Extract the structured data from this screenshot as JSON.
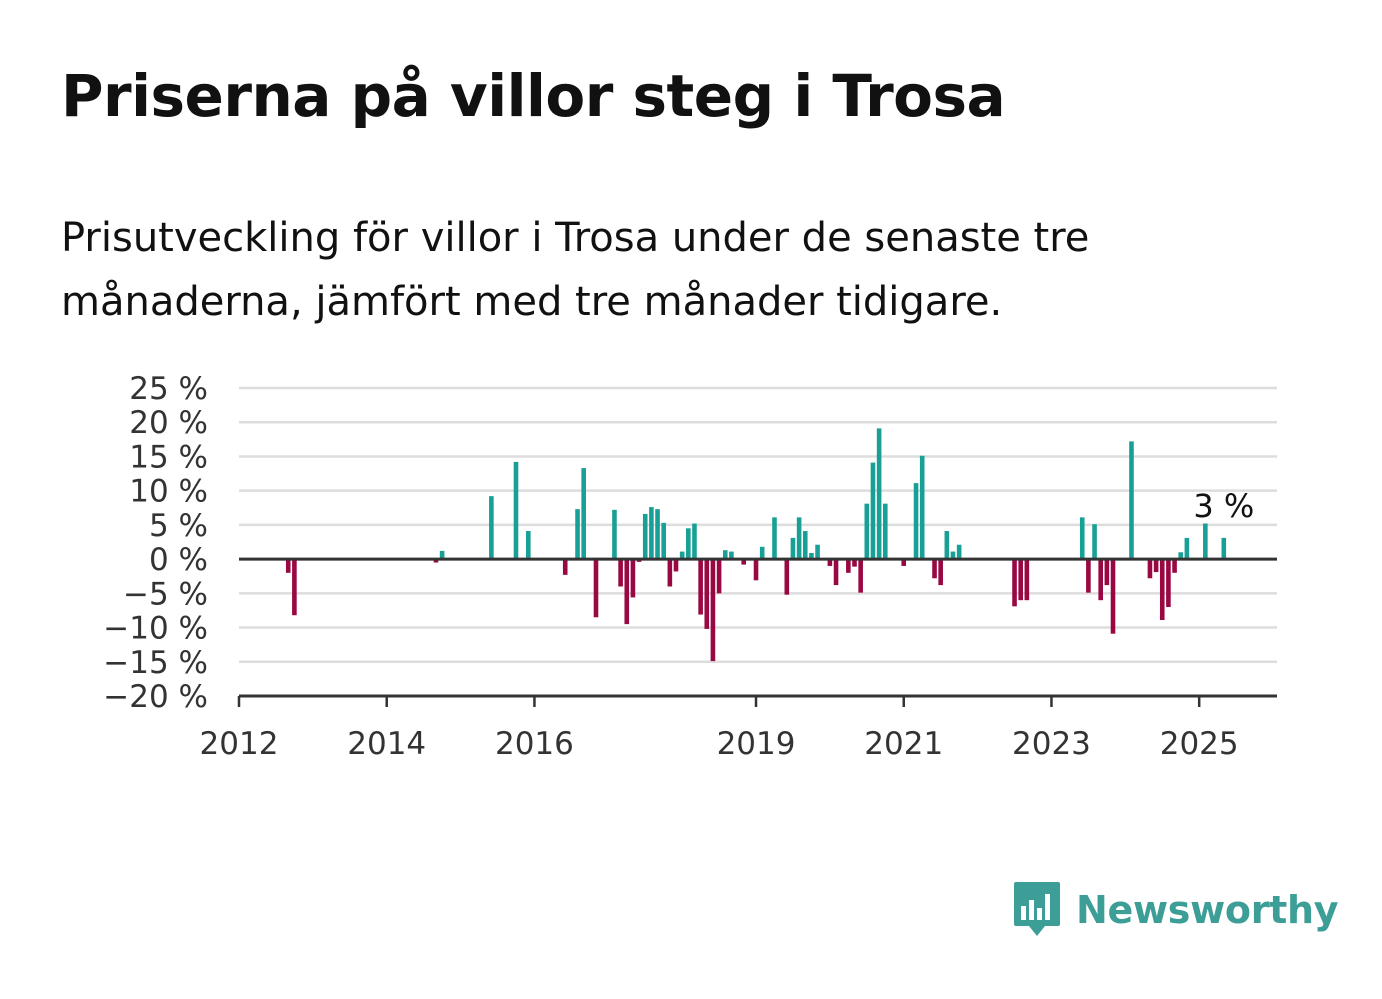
{
  "header": {
    "title": "Priserna på villor steg i Trosa",
    "subtitle": "Prisutveckling för villor i Trosa under de senaste tre månaderna, jämfört med tre månader tidigare."
  },
  "brand": {
    "name": "Newsworthy",
    "icon": "newsworthy-logo-icon",
    "color": "#3d9e97"
  },
  "colors": {
    "positive": "#18a096",
    "negative": "#990842",
    "grid": "#dddddd",
    "axis": "#333333",
    "text": "#111111"
  },
  "chart_data": {
    "type": "bar",
    "ylim": [
      -20,
      25
    ],
    "y_ticks": [
      25,
      20,
      15,
      10,
      5,
      0,
      -5,
      -10,
      -15,
      -20
    ],
    "y_tick_labels": [
      "25 %",
      "20 %",
      "15 %",
      "10 %",
      "5 %",
      "0 %",
      "−5 %",
      "−10 %",
      "−15 %",
      "−20 %"
    ],
    "x_range": [
      "2012-01",
      "2026-01"
    ],
    "x_ticks": [
      {
        "date": "2012-01",
        "label": "2012"
      },
      {
        "date": "2014-01",
        "label": "2014"
      },
      {
        "date": "2016-01",
        "label": "2016"
      },
      {
        "date": "2019-01",
        "label": "2019"
      },
      {
        "date": "2021-01",
        "label": "2021"
      },
      {
        "date": "2023-01",
        "label": "2023"
      },
      {
        "date": "2025-01",
        "label": "2025"
      }
    ],
    "grid": true,
    "annotation": {
      "date": "2025-05",
      "text": "3 %"
    },
    "series": [
      {
        "points": [
          {
            "date": "2012-09",
            "value": -2
          },
          {
            "date": "2012-10",
            "value": -8.2
          },
          {
            "date": "2014-09",
            "value": -0.5
          },
          {
            "date": "2014-10",
            "value": 1.2
          },
          {
            "date": "2015-06",
            "value": 9.2
          },
          {
            "date": "2015-10",
            "value": 14.2
          },
          {
            "date": "2015-12",
            "value": 4.1
          },
          {
            "date": "2016-06",
            "value": -2.3
          },
          {
            "date": "2016-08",
            "value": 7.3
          },
          {
            "date": "2016-09",
            "value": 13.3
          },
          {
            "date": "2016-11",
            "value": -8.5
          },
          {
            "date": "2017-02",
            "value": 7.2
          },
          {
            "date": "2017-03",
            "value": -4
          },
          {
            "date": "2017-04",
            "value": -9.5
          },
          {
            "date": "2017-05",
            "value": -5.6
          },
          {
            "date": "2017-06",
            "value": -0.4
          },
          {
            "date": "2017-07",
            "value": 6.6
          },
          {
            "date": "2017-08",
            "value": 7.6
          },
          {
            "date": "2017-09",
            "value": 7.3
          },
          {
            "date": "2017-10",
            "value": 5.3
          },
          {
            "date": "2017-11",
            "value": -4
          },
          {
            "date": "2017-12",
            "value": -1.8
          },
          {
            "date": "2018-01",
            "value": 1.1
          },
          {
            "date": "2018-02",
            "value": 4.5
          },
          {
            "date": "2018-03",
            "value": 5.2
          },
          {
            "date": "2018-04",
            "value": -8.1
          },
          {
            "date": "2018-05",
            "value": -10.2
          },
          {
            "date": "2018-06",
            "value": -14.9
          },
          {
            "date": "2018-07",
            "value": -5
          },
          {
            "date": "2018-08",
            "value": 1.3
          },
          {
            "date": "2018-09",
            "value": 1.1
          },
          {
            "date": "2018-11",
            "value": -0.8
          },
          {
            "date": "2019-01",
            "value": -3.1
          },
          {
            "date": "2019-02",
            "value": 1.8
          },
          {
            "date": "2019-04",
            "value": 6.1
          },
          {
            "date": "2019-06",
            "value": -5.2
          },
          {
            "date": "2019-07",
            "value": 3.1
          },
          {
            "date": "2019-08",
            "value": 6.1
          },
          {
            "date": "2019-09",
            "value": 4.1
          },
          {
            "date": "2019-10",
            "value": 0.9
          },
          {
            "date": "2019-11",
            "value": 2.1
          },
          {
            "date": "2020-01",
            "value": -1
          },
          {
            "date": "2020-02",
            "value": -3.8
          },
          {
            "date": "2020-04",
            "value": -2
          },
          {
            "date": "2020-05",
            "value": -1.1
          },
          {
            "date": "2020-06",
            "value": -4.9
          },
          {
            "date": "2020-07",
            "value": 8.1
          },
          {
            "date": "2020-08",
            "value": 14.1
          },
          {
            "date": "2020-09",
            "value": 19.1
          },
          {
            "date": "2020-10",
            "value": 8.1
          },
          {
            "date": "2021-01",
            "value": -1
          },
          {
            "date": "2021-03",
            "value": 11.1
          },
          {
            "date": "2021-04",
            "value": 15.1
          },
          {
            "date": "2021-06",
            "value": -2.8
          },
          {
            "date": "2021-07",
            "value": -3.8
          },
          {
            "date": "2021-08",
            "value": 4.1
          },
          {
            "date": "2021-09",
            "value": 1.1
          },
          {
            "date": "2021-10",
            "value": 2.1
          },
          {
            "date": "2022-07",
            "value": -6.9
          },
          {
            "date": "2022-08",
            "value": -6
          },
          {
            "date": "2022-09",
            "value": -6
          },
          {
            "date": "2023-06",
            "value": 6.1
          },
          {
            "date": "2023-07",
            "value": -4.9
          },
          {
            "date": "2023-08",
            "value": 5.1
          },
          {
            "date": "2023-09",
            "value": -6
          },
          {
            "date": "2023-10",
            "value": -3.8
          },
          {
            "date": "2023-11",
            "value": -10.9
          },
          {
            "date": "2024-02",
            "value": 17.2
          },
          {
            "date": "2024-05",
            "value": -2.8
          },
          {
            "date": "2024-06",
            "value": -1.9
          },
          {
            "date": "2024-07",
            "value": -8.9
          },
          {
            "date": "2024-08",
            "value": -7
          },
          {
            "date": "2024-09",
            "value": -2
          },
          {
            "date": "2024-10",
            "value": 1
          },
          {
            "date": "2024-11",
            "value": 3.1
          },
          {
            "date": "2025-02",
            "value": 5.2
          },
          {
            "date": "2025-05",
            "value": 3.1
          }
        ]
      }
    ]
  }
}
